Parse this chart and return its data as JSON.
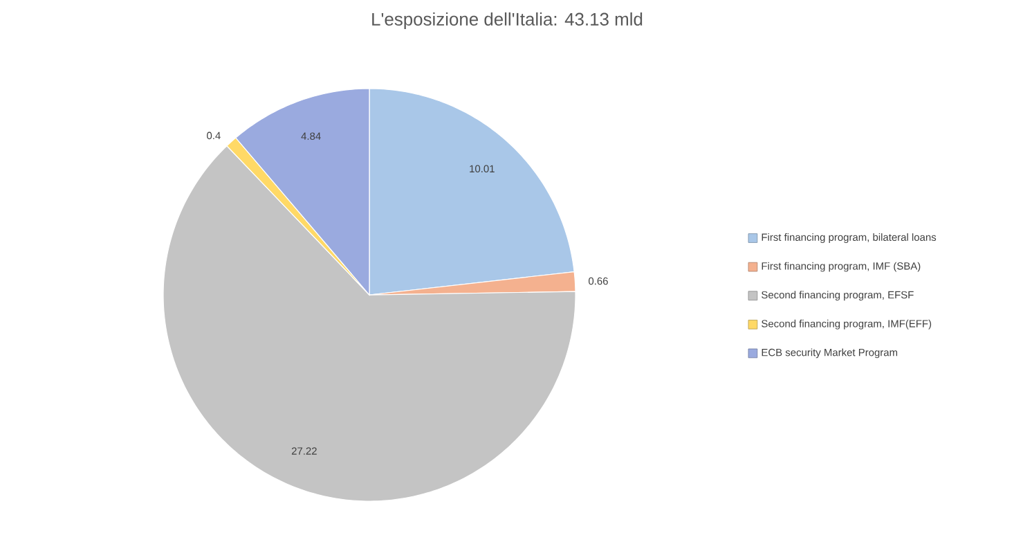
{
  "chart_data": {
    "type": "pie",
    "title": "L'esposizione dell'Italia: 43.13 mld",
    "categories": [
      "First financing program, bilateral loans",
      "First financing program, IMF (SBA)",
      "Second financing program, EFSF",
      "Second financing program, IMF(EFF)",
      "ECB security Market Program"
    ],
    "values": [
      10.01,
      0.66,
      27.22,
      0.4,
      4.84
    ],
    "colors": [
      "#a9c7e8",
      "#f4b18f",
      "#c4c4c4",
      "#ffd966",
      "#9aaadf"
    ],
    "data_labels": true,
    "legend": "right"
  }
}
